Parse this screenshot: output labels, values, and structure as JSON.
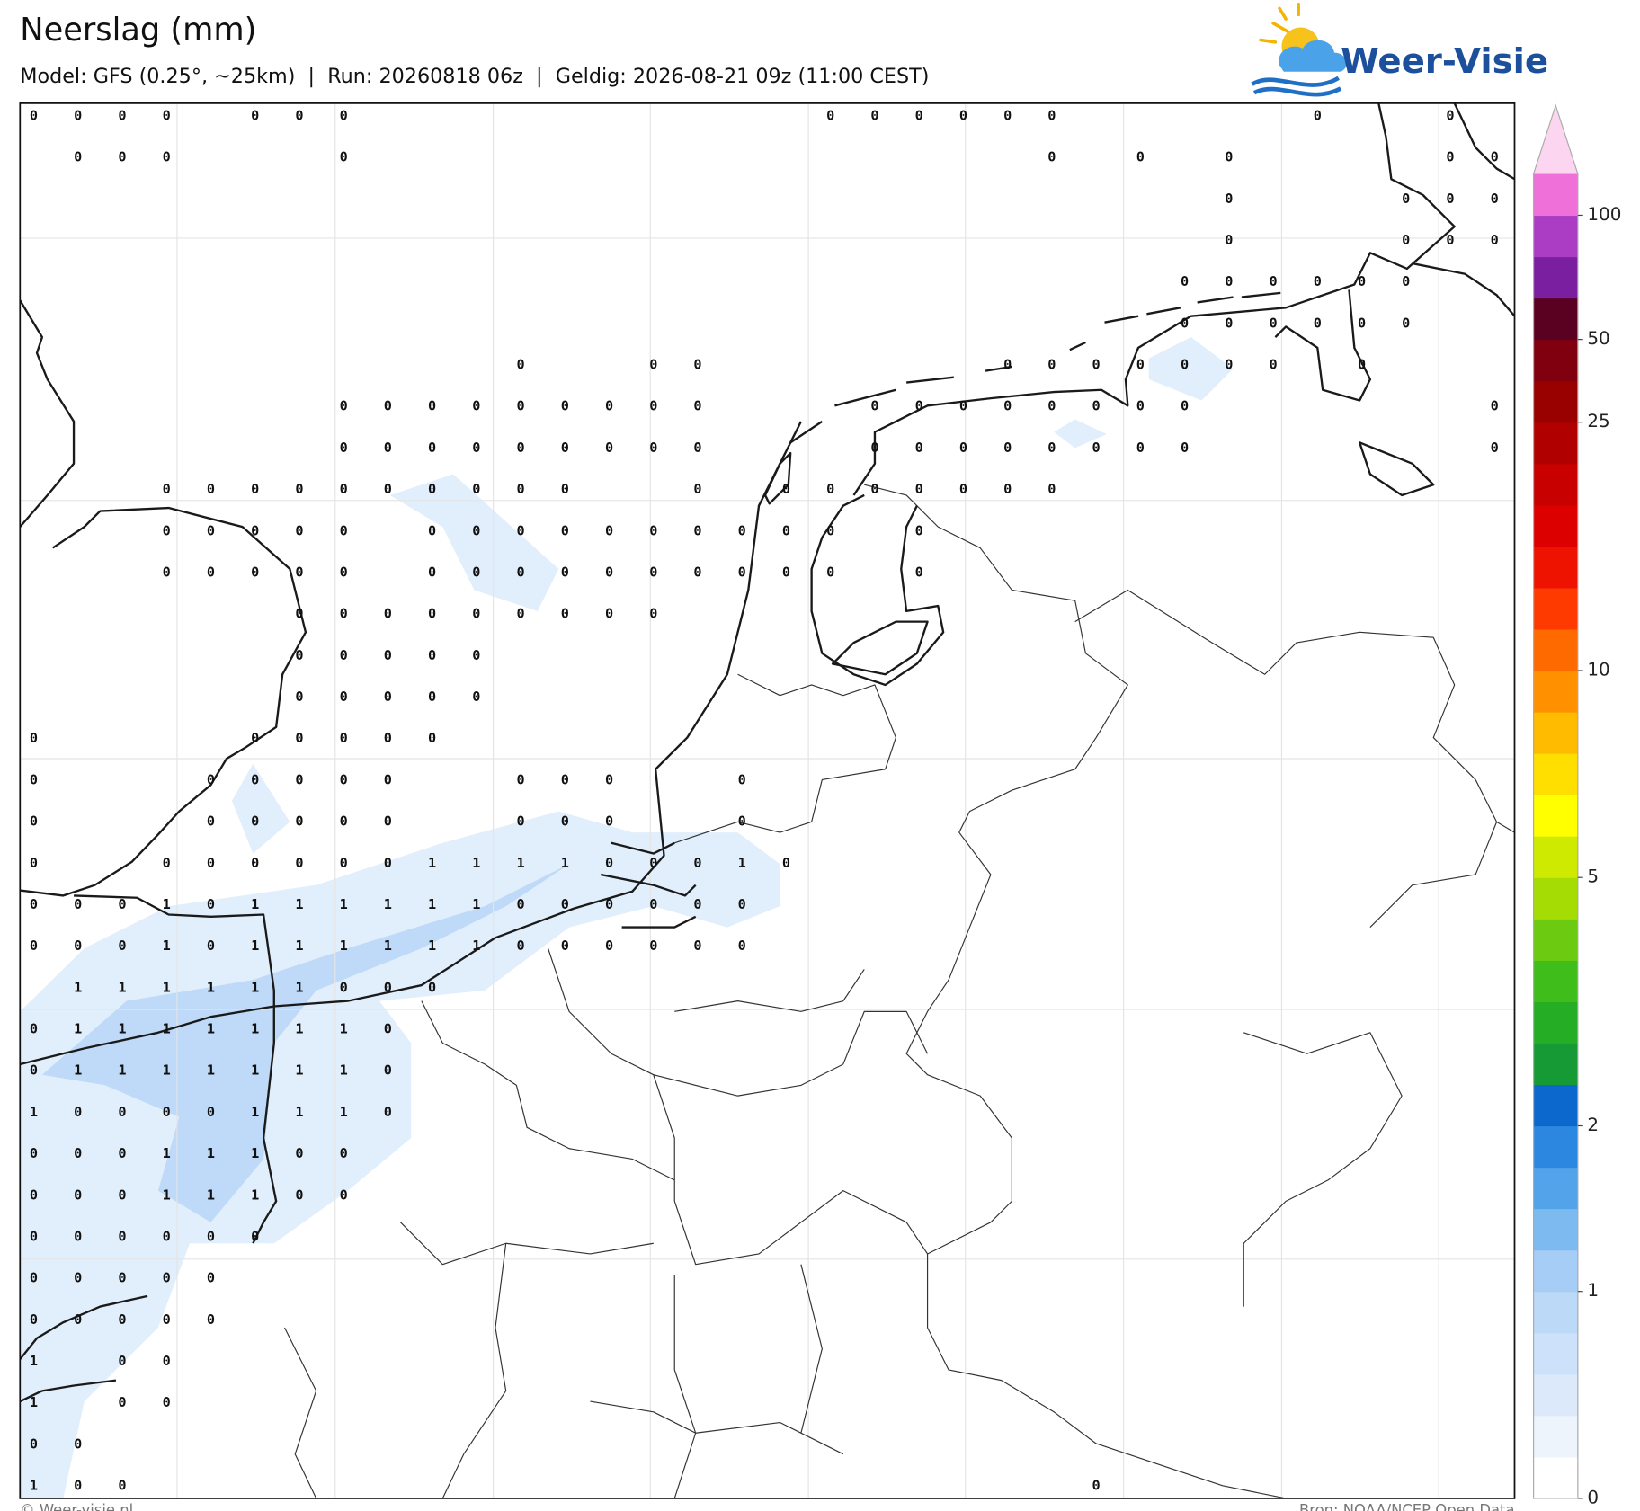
{
  "header": {
    "title": "Neerslag (mm)",
    "subtitle": "Model: GFS (0.25°, ~25km)  |  Run: 20260818 06z  |  Geldig: 2026-08-21 09z (11:00 CEST)",
    "logo": "Weer-Visie"
  },
  "map": {
    "grid_labels": [
      [
        0,
        0,
        0,
        0,
        null,
        0,
        0,
        0,
        null,
        null,
        null,
        null,
        null,
        null,
        null,
        null,
        null,
        null,
        0,
        0,
        0,
        0,
        0,
        0,
        null,
        null,
        null,
        null,
        null,
        0,
        null,
        null,
        0,
        null
      ],
      [
        null,
        0,
        0,
        0,
        null,
        null,
        null,
        0,
        null,
        null,
        null,
        null,
        null,
        null,
        null,
        null,
        null,
        null,
        null,
        null,
        null,
        null,
        null,
        0,
        null,
        0,
        null,
        0,
        null,
        null,
        null,
        null,
        0,
        0
      ],
      [
        null,
        null,
        null,
        null,
        null,
        null,
        null,
        null,
        null,
        null,
        null,
        null,
        null,
        null,
        null,
        null,
        null,
        null,
        null,
        null,
        null,
        null,
        null,
        null,
        null,
        null,
        null,
        0,
        null,
        null,
        null,
        0,
        0,
        0
      ],
      [
        null,
        null,
        null,
        null,
        null,
        null,
        null,
        null,
        null,
        null,
        null,
        null,
        null,
        null,
        null,
        null,
        null,
        null,
        null,
        null,
        null,
        null,
        null,
        null,
        null,
        null,
        null,
        0,
        null,
        null,
        null,
        0,
        0,
        0
      ],
      [
        null,
        null,
        null,
        null,
        null,
        null,
        null,
        null,
        null,
        null,
        null,
        null,
        null,
        null,
        null,
        null,
        null,
        null,
        null,
        null,
        null,
        null,
        null,
        null,
        null,
        null,
        0,
        0,
        0,
        0,
        0,
        0,
        null,
        null
      ],
      [
        null,
        null,
        null,
        null,
        null,
        null,
        null,
        null,
        null,
        null,
        null,
        null,
        null,
        null,
        null,
        null,
        null,
        null,
        null,
        null,
        null,
        null,
        null,
        null,
        null,
        null,
        0,
        0,
        0,
        0,
        0,
        0,
        null,
        null
      ],
      [
        null,
        null,
        null,
        null,
        null,
        null,
        null,
        null,
        null,
        null,
        null,
        0,
        null,
        null,
        0,
        0,
        null,
        null,
        null,
        null,
        null,
        null,
        0,
        0,
        0,
        0,
        0,
        0,
        0,
        null,
        0,
        null,
        null,
        null
      ],
      [
        null,
        null,
        null,
        null,
        null,
        null,
        null,
        0,
        0,
        0,
        0,
        0,
        0,
        0,
        0,
        0,
        null,
        null,
        null,
        0,
        0,
        0,
        0,
        0,
        0,
        0,
        0,
        null,
        null,
        null,
        null,
        null,
        null,
        0
      ],
      [
        null,
        null,
        null,
        null,
        null,
        null,
        null,
        0,
        0,
        0,
        0,
        0,
        0,
        0,
        0,
        0,
        null,
        null,
        null,
        0,
        0,
        0,
        0,
        0,
        0,
        0,
        0,
        null,
        null,
        null,
        null,
        null,
        null,
        0
      ],
      [
        null,
        null,
        null,
        0,
        0,
        0,
        0,
        0,
        0,
        0,
        0,
        0,
        0,
        null,
        null,
        0,
        null,
        0,
        0,
        0,
        0,
        0,
        0,
        0,
        null,
        null,
        null,
        null,
        null,
        null,
        null,
        null,
        null,
        null
      ],
      [
        null,
        null,
        null,
        0,
        0,
        0,
        0,
        0,
        null,
        0,
        0,
        0,
        0,
        0,
        0,
        0,
        0,
        0,
        0,
        null,
        0,
        null,
        null,
        null,
        null,
        null,
        null,
        null,
        null,
        null,
        null,
        null,
        null,
        null
      ],
      [
        null,
        null,
        null,
        0,
        0,
        0,
        0,
        0,
        null,
        0,
        0,
        0,
        0,
        0,
        0,
        0,
        0,
        0,
        0,
        null,
        0,
        null,
        null,
        null,
        null,
        null,
        null,
        null,
        null,
        null,
        null,
        null,
        null,
        null
      ],
      [
        null,
        null,
        null,
        null,
        null,
        null,
        0,
        0,
        0,
        0,
        0,
        0,
        0,
        0,
        0,
        null,
        null,
        null,
        null,
        null,
        null,
        null,
        null,
        null,
        null,
        null,
        null,
        null,
        null,
        null,
        null,
        null,
        null,
        null
      ],
      [
        null,
        null,
        null,
        null,
        null,
        null,
        0,
        0,
        0,
        0,
        0,
        null,
        null,
        null,
        null,
        null,
        null,
        null,
        null,
        null,
        null,
        null,
        null,
        null,
        null,
        null,
        null,
        null,
        null,
        null,
        null,
        null,
        null,
        null
      ],
      [
        null,
        null,
        null,
        null,
        null,
        null,
        0,
        0,
        0,
        0,
        0,
        null,
        null,
        null,
        null,
        null,
        null,
        null,
        null,
        null,
        null,
        null,
        null,
        null,
        null,
        null,
        null,
        null,
        null,
        null,
        null,
        null,
        null,
        null
      ],
      [
        0,
        null,
        null,
        null,
        null,
        0,
        0,
        0,
        0,
        0,
        null,
        null,
        null,
        null,
        null,
        null,
        null,
        null,
        null,
        null,
        null,
        null,
        null,
        null,
        null,
        null,
        null,
        null,
        null,
        null,
        null,
        null,
        null,
        null
      ],
      [
        0,
        null,
        null,
        null,
        0,
        0,
        0,
        0,
        0,
        null,
        null,
        0,
        0,
        0,
        null,
        null,
        0,
        null,
        null,
        null,
        null,
        null,
        null,
        null,
        null,
        null,
        null,
        null,
        null,
        null,
        null,
        null,
        null,
        null
      ],
      [
        0,
        null,
        null,
        null,
        0,
        0,
        0,
        0,
        0,
        null,
        null,
        0,
        0,
        0,
        null,
        null,
        0,
        null,
        null,
        null,
        null,
        null,
        null,
        null,
        null,
        null,
        null,
        null,
        null,
        null,
        null,
        null,
        null,
        null
      ],
      [
        0,
        null,
        null,
        0,
        0,
        0,
        0,
        0,
        0,
        1,
        1,
        1,
        1,
        0,
        0,
        0,
        1,
        0,
        null,
        null,
        null,
        null,
        null,
        null,
        null,
        null,
        null,
        null,
        null,
        null,
        null,
        null,
        null,
        null
      ],
      [
        0,
        0,
        0,
        1,
        0,
        1,
        1,
        1,
        1,
        1,
        1,
        0,
        0,
        0,
        0,
        0,
        0,
        null,
        null,
        null,
        null,
        null,
        null,
        null,
        null,
        null,
        null,
        null,
        null,
        null,
        null,
        null,
        null,
        null
      ],
      [
        0,
        0,
        0,
        1,
        0,
        1,
        1,
        1,
        1,
        1,
        1,
        0,
        0,
        0,
        0,
        0,
        0,
        null,
        null,
        null,
        null,
        null,
        null,
        null,
        null,
        null,
        null,
        null,
        null,
        null,
        null,
        null,
        null,
        null
      ],
      [
        null,
        1,
        1,
        1,
        1,
        1,
        1,
        0,
        0,
        0,
        null,
        null,
        null,
        null,
        null,
        null,
        null,
        null,
        null,
        null,
        null,
        null,
        null,
        null,
        null,
        null,
        null,
        null,
        null,
        null,
        null,
        null,
        null,
        null
      ],
      [
        0,
        1,
        1,
        1,
        1,
        1,
        1,
        1,
        0,
        null,
        null,
        null,
        null,
        null,
        null,
        null,
        null,
        null,
        null,
        null,
        null,
        null,
        null,
        null,
        null,
        null,
        null,
        null,
        null,
        null,
        null,
        null,
        null,
        null
      ],
      [
        0,
        1,
        1,
        1,
        1,
        1,
        1,
        1,
        0,
        null,
        null,
        null,
        null,
        null,
        null,
        null,
        null,
        null,
        null,
        null,
        null,
        null,
        null,
        null,
        null,
        null,
        null,
        null,
        null,
        null,
        null,
        null,
        null,
        null
      ],
      [
        1,
        0,
        0,
        0,
        0,
        1,
        1,
        1,
        0,
        null,
        null,
        null,
        null,
        null,
        null,
        null,
        null,
        null,
        null,
        null,
        null,
        null,
        null,
        null,
        null,
        null,
        null,
        null,
        null,
        null,
        null,
        null,
        null,
        null
      ],
      [
        0,
        0,
        0,
        1,
        1,
        1,
        0,
        0,
        null,
        null,
        null,
        null,
        null,
        null,
        null,
        null,
        null,
        null,
        null,
        null,
        null,
        null,
        null,
        null,
        null,
        null,
        null,
        null,
        null,
        null,
        null,
        null,
        null,
        null
      ],
      [
        0,
        0,
        0,
        1,
        1,
        1,
        0,
        0,
        null,
        null,
        null,
        null,
        null,
        null,
        null,
        null,
        null,
        null,
        null,
        null,
        null,
        null,
        null,
        null,
        null,
        null,
        null,
        null,
        null,
        null,
        null,
        null,
        null,
        null
      ],
      [
        0,
        0,
        0,
        0,
        0,
        0,
        null,
        null,
        null,
        null,
        null,
        null,
        null,
        null,
        null,
        null,
        null,
        null,
        null,
        null,
        null,
        null,
        null,
        null,
        null,
        null,
        null,
        null,
        null,
        null,
        null,
        null,
        null,
        null
      ],
      [
        0,
        0,
        0,
        0,
        0,
        null,
        null,
        null,
        null,
        null,
        null,
        null,
        null,
        null,
        null,
        null,
        null,
        null,
        null,
        null,
        null,
        null,
        null,
        null,
        null,
        null,
        null,
        null,
        null,
        null,
        null,
        null,
        null,
        null
      ],
      [
        0,
        0,
        0,
        0,
        0,
        null,
        null,
        null,
        null,
        null,
        null,
        null,
        null,
        null,
        null,
        null,
        null,
        null,
        null,
        null,
        null,
        null,
        null,
        null,
        null,
        null,
        null,
        null,
        null,
        null,
        null,
        null,
        null,
        null
      ],
      [
        1,
        null,
        0,
        0,
        null,
        null,
        null,
        null,
        null,
        null,
        null,
        null,
        null,
        null,
        null,
        null,
        null,
        null,
        null,
        null,
        null,
        null,
        null,
        null,
        null,
        null,
        null,
        null,
        null,
        null,
        null,
        null,
        null,
        null
      ],
      [
        1,
        null,
        0,
        0,
        null,
        null,
        null,
        null,
        null,
        null,
        null,
        null,
        null,
        null,
        null,
        null,
        null,
        null,
        null,
        null,
        null,
        null,
        null,
        null,
        null,
        null,
        null,
        null,
        null,
        null,
        null,
        null,
        null,
        null
      ],
      [
        0,
        0,
        null,
        null,
        null,
        null,
        null,
        null,
        null,
        null,
        null,
        null,
        null,
        null,
        null,
        null,
        null,
        null,
        null,
        null,
        null,
        null,
        null,
        null,
        null,
        null,
        null,
        null,
        null,
        null,
        null,
        null,
        null,
        null
      ],
      [
        1,
        0,
        0,
        null,
        null,
        null,
        null,
        null,
        null,
        null,
        null,
        null,
        null,
        null,
        null,
        null,
        null,
        null,
        null,
        null,
        null,
        null,
        null,
        null,
        0,
        null,
        null,
        null,
        null,
        null,
        null,
        null,
        null,
        null
      ]
    ]
  },
  "colorbar": {
    "levels": [
      0,
      0.2,
      0.4,
      0.6,
      0.8,
      1,
      1.25,
      1.5,
      1.75,
      2,
      2.5,
      3,
      3.5,
      4,
      4.5,
      5,
      6,
      7,
      8,
      9,
      10,
      12.5,
      15,
      17.5,
      20,
      22.5,
      25,
      37.5,
      50,
      65,
      80,
      100
    ],
    "colors": [
      "#ffffff",
      "#edf4fc",
      "#dce9fa",
      "#cde2fa",
      "#bcdaf8",
      "#a6cdf6",
      "#7dbaf0",
      "#52a3ea",
      "#2b87e0",
      "#0c68cc",
      "#169a36",
      "#25ad25",
      "#3fbd1b",
      "#6ccb10",
      "#a5dc04",
      "#cdea00",
      "#ffff00",
      "#ffdf00",
      "#ffbb00",
      "#ff9000",
      "#ff6a00",
      "#ff3a00",
      "#ee1200",
      "#dd0000",
      "#c80000",
      "#b00000",
      "#990000",
      "#800010",
      "#5a0020",
      "#7a1fa0",
      "#ab3dc5",
      "#ee70d8"
    ],
    "over_color": "#fcd6f0",
    "ticks": [
      0,
      1,
      2,
      5,
      10,
      25,
      50,
      100
    ]
  },
  "footer": {
    "credit": "© Weer-visie.nl",
    "source": "Bron: NOAA/NCEP Open Data"
  }
}
